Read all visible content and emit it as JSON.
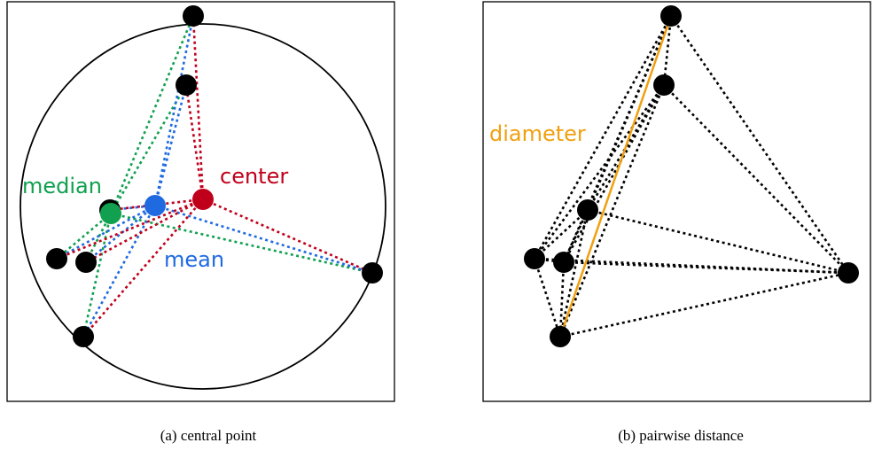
{
  "colors": {
    "center": "#c0001b",
    "median": "#10a050",
    "mean": "#1f6ae0",
    "diameter": "#f0a010",
    "point": "#000000",
    "frame": "#000000"
  },
  "panel_a": {
    "labels": {
      "median": "median",
      "center": "center",
      "mean": "mean"
    },
    "caption": "(a) central point"
  },
  "panel_b": {
    "labels": {
      "diameter": "diameter"
    },
    "caption": "(b) pairwise distance"
  }
}
